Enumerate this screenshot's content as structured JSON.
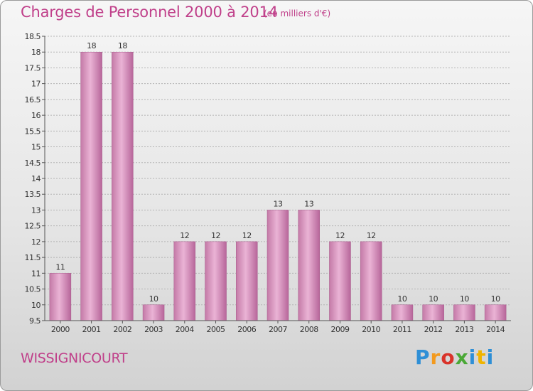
{
  "header": {
    "title": "Charges de Personnel 2000 à 2014",
    "subtitle": "(en milliers d'€)"
  },
  "footer": {
    "commune": "WISSIGNICOURT",
    "logo_text": "Proxiti",
    "logo_colors": [
      "#2e8fd6",
      "#f39a1e",
      "#d9332a",
      "#4aa836",
      "#2e8fd6",
      "#f0b400",
      "#2e8fd6"
    ]
  },
  "colors": {
    "title": "#c0408a",
    "bar_light": "#eab3d5",
    "bar_dark": "#b7669a",
    "grid": "#b4b4b4",
    "axis": "#555555"
  },
  "chart_data": {
    "type": "bar",
    "title": "Charges de Personnel 2000 à 2014",
    "subtitle": "(en milliers d'€)",
    "categories": [
      "2000",
      "2001",
      "2002",
      "2003",
      "2004",
      "2005",
      "2006",
      "2007",
      "2008",
      "2009",
      "2010",
      "2011",
      "2012",
      "2013",
      "2014"
    ],
    "values": [
      11,
      18,
      18,
      10,
      12,
      12,
      12,
      13,
      13,
      12,
      12,
      10,
      10,
      10,
      10
    ],
    "data_labels": [
      "11",
      "18",
      "18",
      "10",
      "12",
      "12",
      "12",
      "13",
      "13",
      "12",
      "12",
      "10",
      "10",
      "10",
      "10"
    ],
    "ylim": [
      9.5,
      18.5
    ],
    "yticks": [
      9.5,
      10,
      10.5,
      11,
      11.5,
      12,
      12.5,
      13,
      13.5,
      14,
      14.5,
      15,
      15.5,
      16,
      16.5,
      17,
      17.5,
      18,
      18.5
    ],
    "ytick_labels": [
      "9.5",
      "10",
      "10.5",
      "11",
      "11.5",
      "12",
      "12.5",
      "13",
      "13.5",
      "14",
      "14.5",
      "15",
      "15.5",
      "16",
      "16.5",
      "17",
      "17.5",
      "18",
      "18.5"
    ],
    "grid": true,
    "legend": "none"
  }
}
